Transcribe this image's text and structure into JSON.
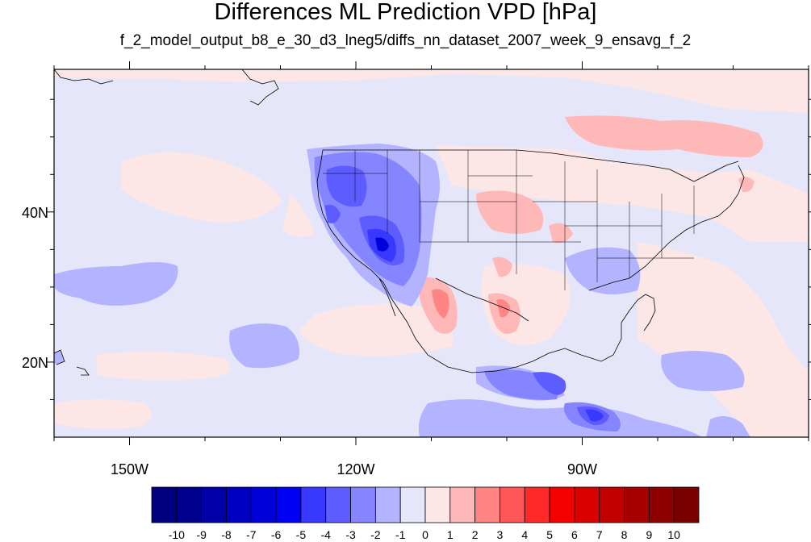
{
  "title": "Differences ML Prediction VPD [hPa]",
  "subtitle": "f_2_model_output_b8_e_30_d3_lneg5/diffs_nn_dataset_2007_week_9_ensavg_f_2",
  "axes": {
    "x_ticks": [
      {
        "value": -150,
        "label": "150W"
      },
      {
        "value": -120,
        "label": "120W"
      },
      {
        "value": -90,
        "label": "90W"
      }
    ],
    "y_ticks": [
      {
        "value": 40,
        "label": "40N"
      },
      {
        "value": 20,
        "label": "20N"
      }
    ],
    "lon_range": [
      -160,
      -60
    ],
    "lat_range": [
      10,
      59
    ]
  },
  "colorbar": {
    "labels": [
      "-10",
      "-9",
      "-8",
      "-7",
      "-6",
      "-5",
      "-4",
      "-3",
      "-2",
      "-1",
      "0",
      "1",
      "2",
      "3",
      "4",
      "5",
      "6",
      "7",
      "8",
      "9",
      "10"
    ],
    "colors": [
      "#000080",
      "#00008f",
      "#0000a8",
      "#0000c2",
      "#0000db",
      "#0000f5",
      "#3838ff",
      "#5c5cff",
      "#8585ff",
      "#b3b3ff",
      "#e6e6fa",
      "#fce6e6",
      "#ffb8b8",
      "#ff8585",
      "#ff5757",
      "#ff2929",
      "#f50000",
      "#db0000",
      "#c20000",
      "#a80000",
      "#8f0000",
      "#7a0000"
    ]
  },
  "map": {
    "background_color": "#e6e6fa",
    "land_color": "#e6e6fa"
  }
}
